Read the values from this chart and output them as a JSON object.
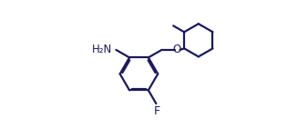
{
  "bg_color": "#ffffff",
  "line_color": "#1a1a5a",
  "text_color": "#1a1a5a",
  "line_width": 1.6,
  "font_size": 8.5,
  "figsize": [
    3.38,
    1.52
  ],
  "dpi": 100,
  "xlim": [
    0,
    3.38
  ],
  "ylim": [
    0,
    1.52
  ]
}
